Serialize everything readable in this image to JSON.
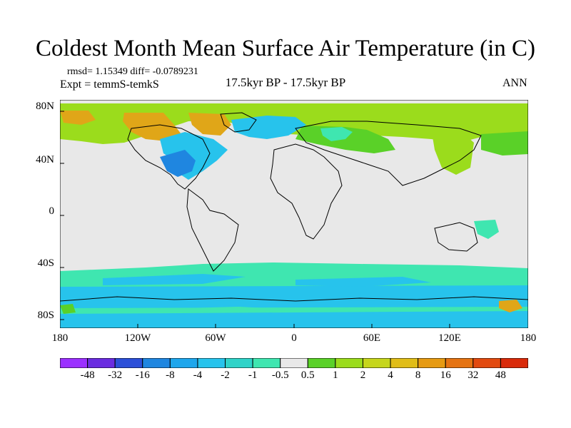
{
  "title": "Coldest Month Mean Surface Air Temperature (in C)",
  "stats_text": "rmsd= 1.15349 diff= -0.0789231",
  "experiment_text": "Expt = temmS-temkS",
  "period_text": "17.5kyr BP - 17.5kyr BP",
  "season": "ANN",
  "lat_labels": [
    "80N",
    "40N",
    "0",
    "40S",
    "80S"
  ],
  "lon_labels": [
    "180",
    "120W",
    "60W",
    "0",
    "60E",
    "120E",
    "180"
  ],
  "colorbar": {
    "colors": [
      "#9b30ff",
      "#6a2ce0",
      "#2c4fd8",
      "#1f86e0",
      "#1ea6ec",
      "#27c3ec",
      "#2fd3c8",
      "#3fe6b0",
      "#e8e8e8",
      "#5ad128",
      "#9bdc1c",
      "#c6d61c",
      "#e0bd18",
      "#e69a12",
      "#e57312",
      "#e24a10",
      "#d92a0a"
    ],
    "labels": [
      "-48",
      "-32",
      "-16",
      "-8",
      "-4",
      "-2",
      "-1",
      "-0.5",
      "0.5",
      "1",
      "2",
      "4",
      "8",
      "16",
      "32",
      "48"
    ]
  },
  "map_colors": {
    "neutral": "#e8e8e8",
    "green": "#5ad128",
    "yellow_green": "#9bdc1c",
    "orange": "#e0a618",
    "cyan": "#27c3ec",
    "teal": "#3fe6b0",
    "blue": "#1f86e0"
  }
}
